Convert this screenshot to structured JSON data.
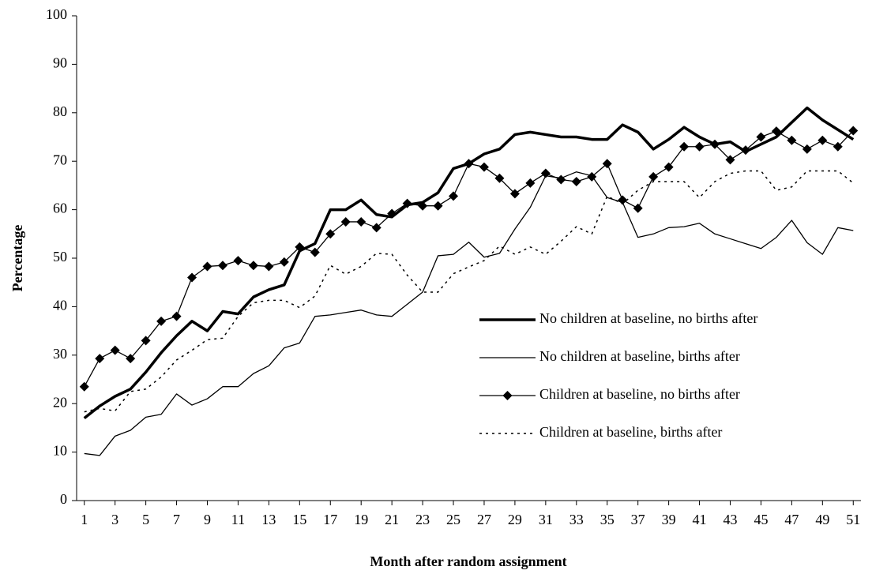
{
  "chart_data": {
    "type": "line",
    "x_label": "Month after random assignment",
    "y_label": "Percentage",
    "x": [
      1,
      2,
      3,
      4,
      5,
      6,
      7,
      8,
      9,
      10,
      11,
      12,
      13,
      14,
      15,
      16,
      17,
      18,
      19,
      20,
      21,
      22,
      23,
      24,
      25,
      26,
      27,
      28,
      29,
      30,
      31,
      32,
      33,
      34,
      35,
      36,
      37,
      38,
      39,
      40,
      41,
      42,
      43,
      44,
      45,
      46,
      47,
      48,
      49,
      50,
      51
    ],
    "xlim": [
      0.5,
      51.5
    ],
    "xticks": [
      1,
      3,
      5,
      7,
      9,
      11,
      13,
      15,
      17,
      19,
      21,
      23,
      25,
      27,
      29,
      31,
      33,
      35,
      37,
      39,
      41,
      43,
      45,
      47,
      49,
      51
    ],
    "ylim": [
      0,
      100
    ],
    "yticks": [
      0,
      10,
      20,
      30,
      40,
      50,
      60,
      70,
      80,
      90,
      100
    ],
    "legend": "center right",
    "series": [
      {
        "name": "No children at baseline, no births after",
        "color": "#000000",
        "width": 3.5,
        "dash": "none",
        "marker": "none",
        "values": [
          17,
          19.5,
          21.5,
          23,
          26.5,
          30.5,
          34,
          37,
          35,
          39,
          38.5,
          42,
          43.5,
          44.5,
          51.5,
          53,
          60,
          60,
          62,
          59,
          58.5,
          61,
          61.5,
          63.5,
          68.5,
          69.5,
          71.5,
          72.5,
          75.5,
          76,
          75.5,
          75,
          75,
          74.5,
          74.5,
          77.5,
          76,
          72.5,
          74.5,
          77,
          75,
          73.5,
          74,
          72,
          73.5,
          75,
          78,
          81,
          78.5,
          76.5,
          74.5
        ]
      },
      {
        "name": "No children at baseline, births after",
        "color": "#000000",
        "width": 1.3,
        "dash": "none",
        "marker": "none",
        "values": [
          9.7,
          9.3,
          13.3,
          14.5,
          17.2,
          17.8,
          22,
          19.7,
          21,
          23.5,
          23.5,
          26.2,
          27.8,
          31.5,
          32.5,
          38,
          38.3,
          38.8,
          39.3,
          38.3,
          38,
          40.5,
          43,
          50.5,
          50.8,
          53.3,
          50.2,
          51,
          56,
          60.5,
          67,
          66.5,
          67.8,
          67,
          62.5,
          61.5,
          54.3,
          55,
          56.3,
          56.5,
          57.2,
          55,
          54,
          53,
          52,
          54.3,
          57.8,
          53.2,
          50.8,
          56.3,
          55.7
        ]
      },
      {
        "name": "Children at baseline, no births after",
        "color": "#000000",
        "width": 1.3,
        "dash": "none",
        "marker": "diamond",
        "values": [
          23.5,
          29.3,
          31,
          29.3,
          33,
          37,
          38,
          46,
          48.3,
          48.5,
          49.5,
          48.5,
          48.3,
          49.2,
          52.3,
          51.2,
          55,
          57.5,
          57.5,
          56.3,
          59.2,
          61.3,
          60.8,
          60.8,
          62.8,
          69.5,
          68.8,
          66.5,
          63.3,
          65.5,
          67.5,
          66.2,
          65.8,
          66.8,
          69.5,
          62,
          60.3,
          66.8,
          68.8,
          73,
          73,
          73.5,
          70.3,
          72.3,
          75,
          76.2,
          74.3,
          72.5,
          74.3,
          73,
          76.3
        ]
      },
      {
        "name": "Children at baseline, births after",
        "color": "#000000",
        "width": 1.5,
        "dash": "3,5",
        "marker": "none",
        "values": [
          18.3,
          19,
          18.5,
          22.5,
          23,
          25.5,
          29,
          31,
          33.2,
          33.5,
          38,
          40.8,
          41.3,
          41.3,
          39.8,
          42.2,
          48.5,
          46.7,
          48.3,
          51,
          50.8,
          46.5,
          43,
          43,
          46.8,
          48.2,
          49.5,
          52.5,
          50.8,
          52.3,
          50.8,
          53.5,
          56.5,
          55,
          62.8,
          61.2,
          64,
          65.8,
          65.8,
          65.8,
          62.5,
          65.8,
          67.5,
          68,
          68,
          64,
          64.7,
          68,
          68,
          68,
          65.5
        ]
      }
    ]
  }
}
